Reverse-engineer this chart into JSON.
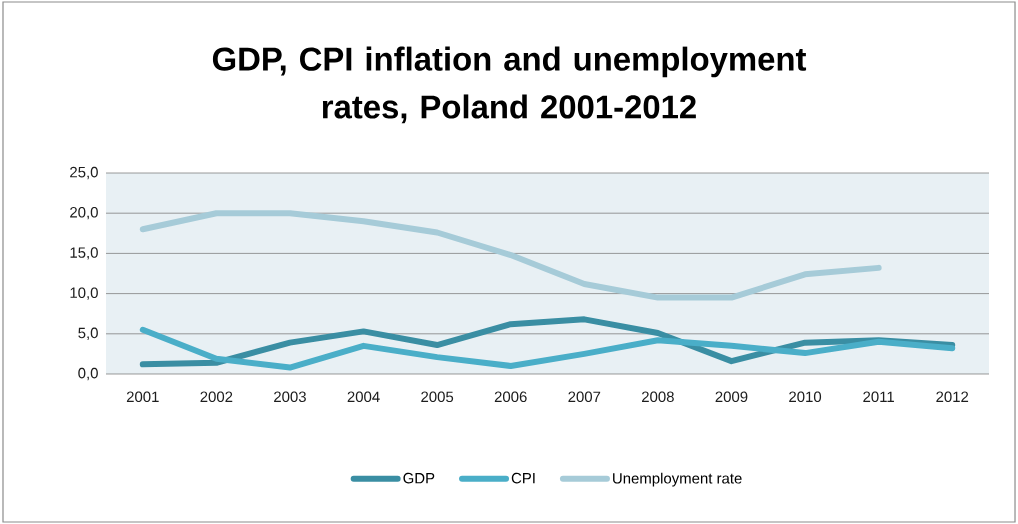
{
  "chart_data": {
    "type": "line",
    "title": "GDP, CPI inflation and unemployment rates, Poland 2001-2012",
    "categories": [
      "2001",
      "2002",
      "2003",
      "2004",
      "2005",
      "2006",
      "2007",
      "2008",
      "2009",
      "2010",
      "2011",
      "2012"
    ],
    "series": [
      {
        "name": "GDP",
        "color": "#3a8ea3",
        "values": [
          1.2,
          1.4,
          3.9,
          5.3,
          3.6,
          6.2,
          6.8,
          5.1,
          1.6,
          3.9,
          4.2,
          3.6
        ]
      },
      {
        "name": "CPI",
        "color": "#4aaec8",
        "values": [
          5.5,
          1.9,
          0.8,
          3.5,
          2.1,
          1.0,
          2.5,
          4.2,
          3.5,
          2.6,
          4.0,
          3.2
        ]
      },
      {
        "name": "Unemployment rate",
        "color": "#a6cbd8",
        "values": [
          18.0,
          20.0,
          20.0,
          19.0,
          17.6,
          14.8,
          11.2,
          9.5,
          9.5,
          12.4,
          13.2,
          null
        ]
      }
    ],
    "ylim": [
      0,
      25
    ],
    "yticks": [
      {
        "value": 0,
        "label": "0,0"
      },
      {
        "value": 5,
        "label": "5,0"
      },
      {
        "value": 10,
        "label": "10,0"
      },
      {
        "value": 15,
        "label": "15,0"
      },
      {
        "value": 20,
        "label": "20,0"
      },
      {
        "value": 25,
        "label": "25,0"
      }
    ],
    "grid": "y",
    "legend": "bottom",
    "marker": "none",
    "line_style": "solid"
  }
}
